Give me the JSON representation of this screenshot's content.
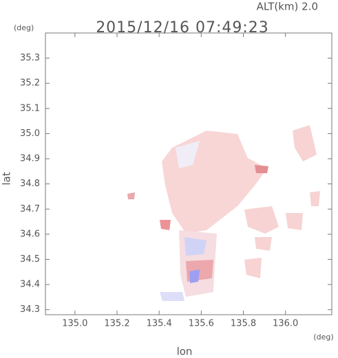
{
  "chart_data": {
    "type": "field",
    "title": "2015/12/16 07:49:23",
    "subtitle": "ALT(km) 2.0",
    "x_label": "lon",
    "y_label": "lat",
    "x_unit": "(deg)",
    "y_unit": "(deg)",
    "xlim": [
      134.86,
      136.22
    ],
    "ylim": [
      34.28,
      35.4
    ],
    "xticks": [
      {
        "value": 135,
        "label": "135.0"
      },
      135.2,
      135.4,
      135.6,
      135.8,
      {
        "value": 136,
        "label": "136.0"
      }
    ],
    "yticks": [
      {
        "value": 34.3,
        "label": "34.3"
      },
      34.4,
      34.5,
      34.6,
      34.7,
      34.8,
      34.9,
      {
        "value": 35,
        "label": "35.0"
      },
      35.1,
      35.2,
      35.3
    ]
  }
}
